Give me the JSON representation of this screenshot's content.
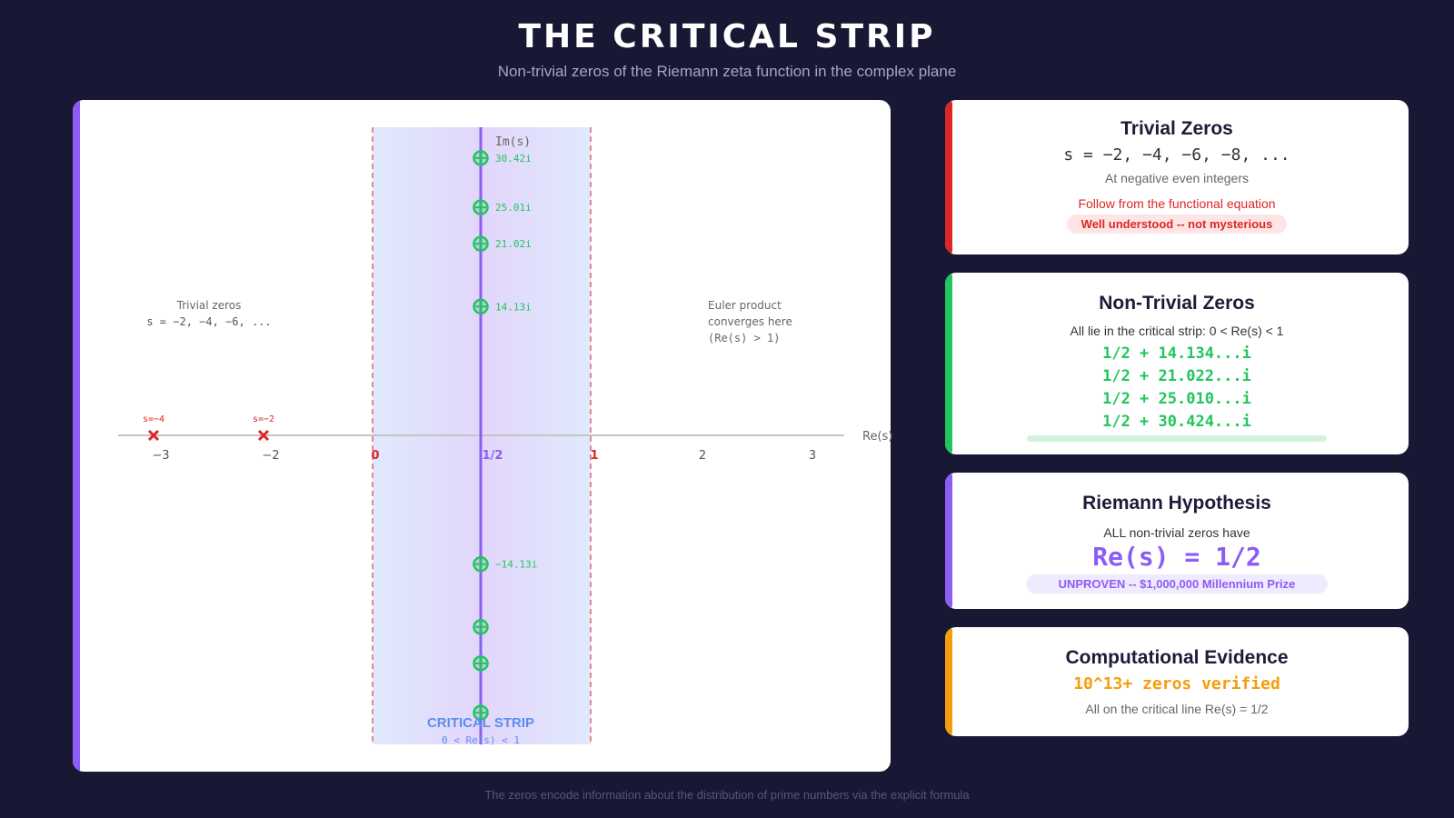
{
  "header": {
    "title": "THE CRITICAL STRIP",
    "subtitle": "Non-trivial zeros of the Riemann zeta function in the complex plane"
  },
  "footer": "The zeros encode information about the distribution of prime numbers via the explicit formula",
  "chart_data": {
    "type": "scatter",
    "xlabel": "Re(s)",
    "ylabel": "Im(s)",
    "x_ticks": [
      "−3",
      "−2",
      "0",
      "1/2",
      "1",
      "2",
      "3"
    ],
    "critical_strip": {
      "re_min": 0,
      "re_max": 1,
      "label": "CRITICAL STRIP",
      "sublabel": "0 < Re(s) < 1"
    },
    "critical_line": 0.5,
    "non_trivial_zeros": [
      {
        "re": 0.5,
        "im": 30.42,
        "label": "30.42i"
      },
      {
        "re": 0.5,
        "im": 25.01,
        "label": "25.01i"
      },
      {
        "re": 0.5,
        "im": 21.02,
        "label": "21.02i"
      },
      {
        "re": 0.5,
        "im": 14.13,
        "label": "14.13i"
      },
      {
        "re": 0.5,
        "im": -14.13,
        "label": "−14.13i"
      },
      {
        "re": 0.5,
        "im": -21.02,
        "label": ""
      },
      {
        "re": 0.5,
        "im": -25.01,
        "label": ""
      },
      {
        "re": 0.5,
        "im": -30.42,
        "label": ""
      }
    ],
    "trivial_zeros": [
      {
        "re": -4,
        "label": "s=−4"
      },
      {
        "re": -2,
        "label": "s=−2"
      }
    ],
    "annotations": {
      "trivial_title": "Trivial zeros",
      "trivial_formula": "s = −2, −4, −6, ...",
      "euler_line1": "Euler product",
      "euler_line2": "converges here",
      "euler_line3": "(Re(s) > 1)"
    },
    "colors": {
      "zero": "#22c55e",
      "trivial": "#dc2626",
      "line": "#8b5cf6",
      "strip_label": "#3b82f6",
      "boundary": "#e06666"
    }
  },
  "cards": {
    "trivial": {
      "title": "Trivial Zeros",
      "formula": "s = −2, −4, −6, −8, ...",
      "desc": "At negative even integers",
      "note": "Follow from the functional equation",
      "badge": "Well understood -- not mysterious",
      "color": "#dc2626"
    },
    "nontrivial": {
      "title": "Non-Trivial Zeros",
      "desc": "All lie in the critical strip: 0 < Re(s) < 1",
      "zeros": [
        "1/2 + 14.134...i",
        "1/2 + 21.022...i",
        "1/2 + 25.010...i",
        "1/2 + 30.424...i"
      ],
      "color": "#22c55e"
    },
    "rh": {
      "title": "Riemann Hypothesis",
      "desc": "ALL non-trivial zeros have",
      "formula": "Re(s) = 1/2",
      "badge": "UNPROVEN -- $1,000,000 Millennium Prize",
      "color": "#8b5cf6"
    },
    "evidence": {
      "title": "Computational Evidence",
      "headline": "10^13+ zeros verified",
      "desc": "All on the critical line Re(s) = 1/2",
      "color": "#f59e0b"
    }
  }
}
